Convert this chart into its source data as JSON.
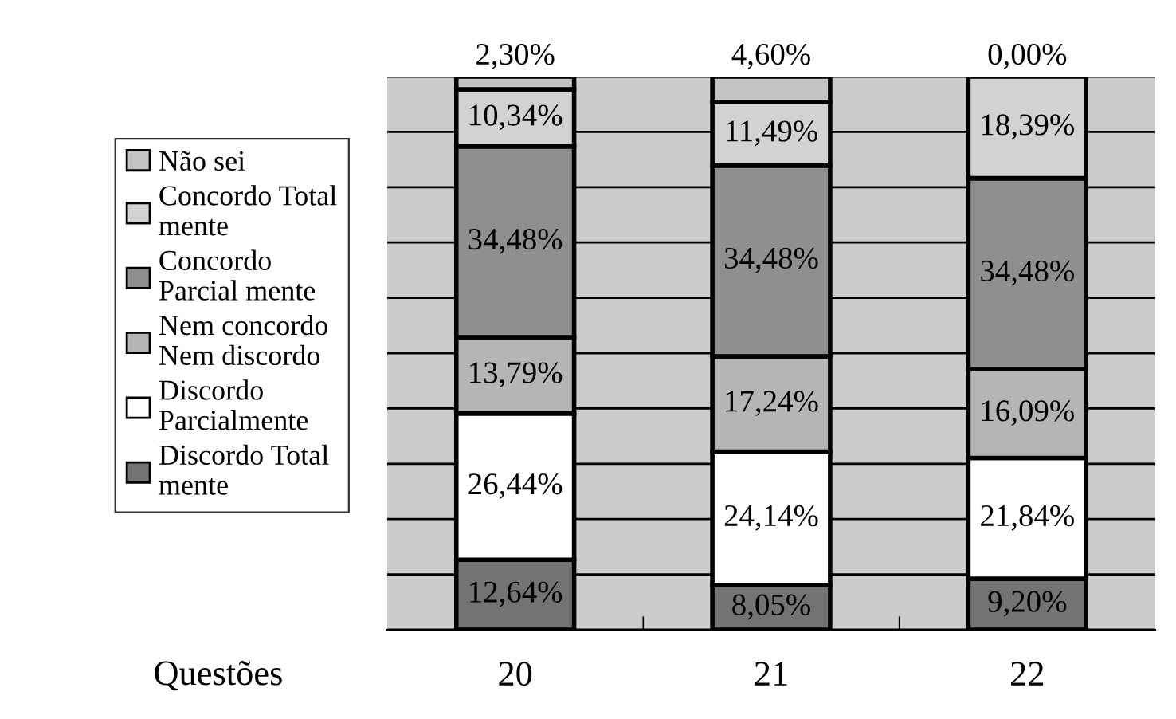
{
  "chart_data": {
    "type": "bar",
    "stacked": true,
    "xlabel": "Questões",
    "categories": [
      "20",
      "21",
      "22"
    ],
    "ylim": [
      0,
      100
    ],
    "yticks": [
      {
        "value": 0,
        "label": null
      },
      {
        "value": 10,
        "label": null
      },
      {
        "value": 20,
        "label": null
      },
      {
        "value": 30,
        "label": null
      },
      {
        "value": 40,
        "label": null
      },
      {
        "value": 50,
        "label": null
      },
      {
        "value": 60,
        "label": null
      },
      {
        "value": 70,
        "label": null
      },
      {
        "value": 80,
        "label": null
      },
      {
        "value": 90,
        "label": null
      },
      {
        "value": 100,
        "label": null
      }
    ],
    "tick_labels": "x",
    "grid": "y",
    "legend": "left",
    "series": [
      {
        "name": "Discordo Total\nmente",
        "color": "#737373",
        "values": [
          12.64,
          8.05,
          9.2
        ],
        "value_labels": [
          "12,64%",
          "8,05%",
          "9,20%"
        ]
      },
      {
        "name": "Discordo\nParcialmente",
        "color": "#ffffff",
        "values": [
          26.44,
          24.14,
          21.84
        ],
        "value_labels": [
          "26,44%",
          "24,14%",
          "21,84%"
        ]
      },
      {
        "name": "Nem concordo\nNem discordo",
        "color": "#b5b5b5",
        "values": [
          13.79,
          17.24,
          16.09
        ],
        "value_labels": [
          "13,79%",
          "17,24%",
          "16,09%"
        ]
      },
      {
        "name": "Concordo\nParcial mente",
        "color": "#8f8f8f",
        "values": [
          34.48,
          34.48,
          34.48
        ],
        "value_labels": [
          "34,48%",
          "34,48%",
          "34,48%"
        ]
      },
      {
        "name": "Concordo Total\nmente",
        "color": "#d2d2d2",
        "values": [
          10.34,
          11.49,
          18.39
        ],
        "value_labels": [
          "10,34%",
          "11,49%",
          "18,39%"
        ]
      },
      {
        "name": "Não sei",
        "color": "#c4c4c4",
        "values": [
          2.3,
          4.6,
          0.0
        ],
        "value_labels": [
          "2,30%",
          "4,60%",
          "0,00%"
        ]
      }
    ]
  }
}
